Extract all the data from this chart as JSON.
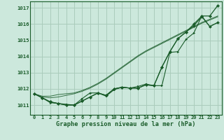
{
  "title": "Graphe pression niveau de la mer (hPa)",
  "background_color": "#cce8dc",
  "grid_color": "#aaccbb",
  "line_color": "#1a5c2a",
  "x_labels": [
    "0",
    "1",
    "2",
    "3",
    "4",
    "5",
    "6",
    "7",
    "8",
    "9",
    "10",
    "11",
    "12",
    "13",
    "14",
    "15",
    "16",
    "17",
    "18",
    "19",
    "20",
    "21",
    "22",
    "23"
  ],
  "ylim": [
    1010.4,
    1017.4
  ],
  "yticks": [
    1011,
    1012,
    1013,
    1014,
    1015,
    1016,
    1017
  ],
  "series_smooth": [
    [
      1011.7,
      1011.55,
      1011.55,
      1011.65,
      1011.7,
      1011.75,
      1011.9,
      1012.1,
      1012.35,
      1012.65,
      1013.0,
      1013.35,
      1013.7,
      1014.05,
      1014.35,
      1014.6,
      1014.85,
      1015.1,
      1015.35,
      1015.6,
      1015.85,
      1016.1,
      1016.3,
      1016.5
    ],
    [
      1011.7,
      1011.5,
      1011.45,
      1011.5,
      1011.6,
      1011.7,
      1011.85,
      1012.05,
      1012.3,
      1012.6,
      1012.95,
      1013.3,
      1013.65,
      1014.0,
      1014.3,
      1014.55,
      1014.8,
      1015.05,
      1015.3,
      1015.55,
      1015.8,
      1016.05,
      1016.25,
      1016.45
    ]
  ],
  "series_markers": [
    [
      1011.7,
      1011.45,
      1011.2,
      1011.1,
      1011.0,
      1011.0,
      1011.25,
      1011.5,
      1011.75,
      1011.6,
      1012.0,
      1012.1,
      1012.05,
      1012.05,
      1012.25,
      1012.2,
      1013.35,
      1014.3,
      1015.1,
      1015.5,
      1015.9,
      1016.45,
      1015.85,
      1016.1
    ],
    [
      1011.7,
      1011.45,
      1011.15,
      1011.1,
      1011.05,
      1011.0,
      1011.4,
      1011.75,
      1011.75,
      1011.55,
      1011.95,
      1012.1,
      1012.05,
      1012.15,
      1012.3,
      1012.2,
      1012.2,
      1014.25,
      1014.3,
      1015.05,
      1015.45,
      1016.5,
      1015.85,
      1016.1
    ]
  ],
  "series_top": [
    1011.7,
    1011.45,
    1011.2,
    1011.1,
    1011.0,
    1011.0,
    1011.25,
    1011.5,
    1011.75,
    1011.6,
    1012.0,
    1012.1,
    1012.05,
    1012.05,
    1012.25,
    1012.2,
    1013.35,
    1014.3,
    1015.1,
    1015.5,
    1016.0,
    1016.5,
    1016.5,
    1017.15
  ]
}
